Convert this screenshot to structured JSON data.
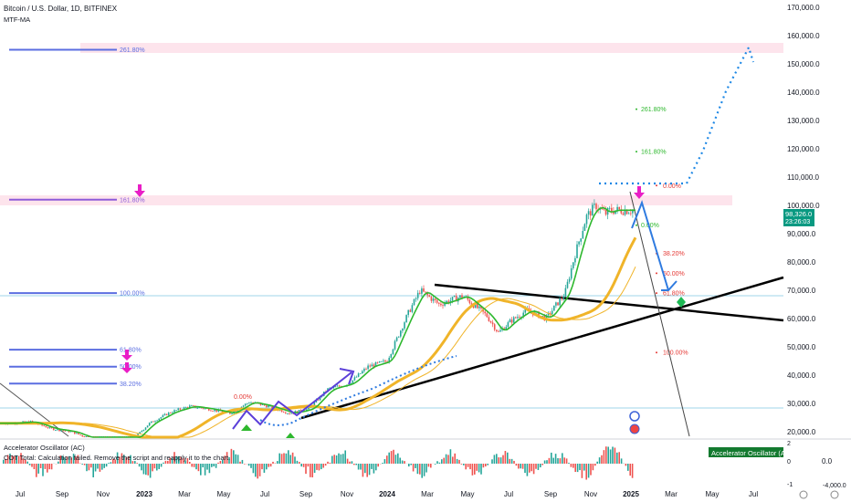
{
  "header": {
    "title": "Bitcoin / U.S. Dollar, 1D, BITFINEX",
    "indicator": "MTF-MA"
  },
  "oscillator": {
    "title": "Accelerator Oscillator (AC)",
    "error": "COT Total: Calculation failed. Remove the script and reapply it to the chart.",
    "badge": "Accelerator Oscillator (AC)",
    "value": "0.0",
    "scale_top": "2",
    "scale_mid": "0",
    "scale_bot": "-1",
    "scale_right": "-4,000.0"
  },
  "price_tag": {
    "price": "98,326.0",
    "countdown": "23:26:03"
  },
  "colors": {
    "candle_up": "#26a69a",
    "candle_down": "#ef5350",
    "ma_fast": "#2eb82e",
    "ma_slow": "#f0b429",
    "fib_blue": "#5b6ee1",
    "fib_purple": "#8e5bd9",
    "zone_pink": "#fde4ec",
    "arrow_blue": "#2f7be0",
    "arrow_magenta": "#e91ec6",
    "projection_blue": "#1e88e5"
  },
  "chart_data": {
    "type": "line",
    "title": "Bitcoin / U.S. Dollar, 1D, BITFINEX",
    "x_ticks": [
      "Jul",
      "Sep",
      "Nov",
      "2023",
      "Mar",
      "May",
      "Jul",
      "Sep",
      "Nov",
      "2024",
      "Mar",
      "May",
      "Jul",
      "Sep",
      "Nov",
      "2025",
      "Mar",
      "May",
      "Jul"
    ],
    "y_ticks": [
      170000,
      160000,
      150000,
      140000,
      130000,
      120000,
      110000,
      100000,
      90000,
      80000,
      70000,
      60000,
      50000,
      40000,
      30000,
      20000
    ],
    "ylim": [
      18000,
      172000
    ],
    "xlim": [
      2022.45,
      2025.75
    ],
    "series": [
      {
        "x": [
          2022.5,
          2022.58,
          2022.67,
          2022.75,
          2022.83,
          2022.92,
          2023.0,
          2023.08,
          2023.17,
          2023.25,
          2023.33,
          2023.42,
          2023.5,
          2023.58,
          2023.67,
          2023.75,
          2023.83,
          2023.92,
          2024.0,
          2024.08,
          2024.17,
          2024.22,
          2024.3,
          2024.4,
          2024.5,
          2024.55,
          2024.6,
          2024.67,
          2024.75,
          2024.83,
          2024.87,
          2024.92,
          2024.96,
          2025.0,
          2025.02
        ],
        "values": [
          23000,
          23500,
          21000,
          20000,
          17500,
          16800,
          16500,
          23000,
          27000,
          29000,
          28000,
          26500,
          30500,
          29000,
          26500,
          28000,
          35000,
          37000,
          43000,
          45000,
          62000,
          70000,
          65000,
          68000,
          61000,
          55000,
          59000,
          63000,
          60000,
          69000,
          82000,
          96000,
          100000,
          97000,
          98300
        ]
      }
    ],
    "fib_left": [
      {
        "label": "261.80%",
        "value": 155000
      },
      {
        "label": "161.80%",
        "value": 102000
      },
      {
        "label": "100.00%",
        "value": 69000
      },
      {
        "label": "61.80%",
        "value": 49000
      },
      {
        "label": "50.00%",
        "value": 43000
      },
      {
        "label": "38.20%",
        "value": 37000
      }
    ],
    "fib_right_green": [
      {
        "label": "261.80%",
        "value": 134000
      },
      {
        "label": "161.80%",
        "value": 119000
      },
      {
        "label": "0.00%",
        "value": 93000
      }
    ],
    "fib_right_red": [
      {
        "label": "0.00%",
        "value": 107000
      },
      {
        "label": "38.20%",
        "value": 83000
      },
      {
        "label": "50.00%",
        "value": 76000
      },
      {
        "label": "61.80%",
        "value": 69000
      },
      {
        "label": "100.00%",
        "value": 48000
      }
    ],
    "fib_small_red": [
      {
        "label": "0.00%",
        "value": 28000
      }
    ]
  }
}
